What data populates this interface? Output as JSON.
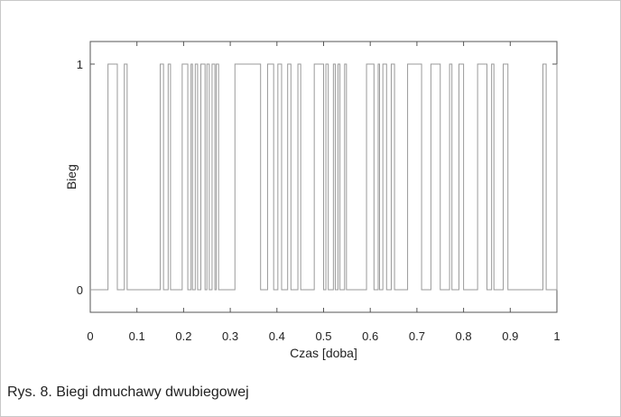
{
  "chart_data": {
    "type": "line",
    "step": true,
    "xlabel": "Czas [doba]",
    "ylabel": "Bieg",
    "xlim": [
      0,
      1
    ],
    "ylim": [
      -0.1,
      1.1
    ],
    "x_ticks": [
      "0",
      "0.1",
      "0.2",
      "0.3",
      "0.4",
      "0.5",
      "0.6",
      "0.7",
      "0.8",
      "0.9",
      "1"
    ],
    "y_ticks": [
      "0",
      "1"
    ],
    "grid": false,
    "line_color": "#9a9a9a",
    "series": [
      {
        "x": [
          0,
          0.038,
          0.058,
          0.073,
          0.079,
          0.15,
          0.157,
          0.167,
          0.172,
          0.197,
          0.209,
          0.216,
          0.219,
          0.225,
          0.23,
          0.237,
          0.246,
          0.25,
          0.255,
          0.261,
          0.267,
          0.27,
          0.275,
          0.31,
          0.365,
          0.38,
          0.393,
          0.402,
          0.41,
          0.423,
          0.43,
          0.445,
          0.451,
          0.48,
          0.5,
          0.505,
          0.51,
          0.521,
          0.525,
          0.531,
          0.535,
          0.545,
          0.549,
          0.592,
          0.608,
          0.617,
          0.62,
          0.627,
          0.635,
          0.645,
          0.652,
          0.68,
          0.71,
          0.73,
          0.75,
          0.77,
          0.775,
          0.79,
          0.8,
          0.83,
          0.85,
          0.86,
          0.865,
          0.885,
          0.895,
          0.97,
          0.977,
          1
        ]
      }
    ],
    "y_values_step": [
      0,
      1,
      0,
      1,
      0,
      1,
      0,
      1,
      0,
      1,
      0,
      1,
      0,
      1,
      0,
      1,
      0,
      1,
      0,
      1,
      0,
      1,
      0,
      1,
      0,
      1,
      0,
      1,
      0,
      1,
      0,
      1,
      0,
      1,
      0,
      1,
      0,
      1,
      0,
      1,
      0,
      1,
      0,
      1,
      0,
      1,
      0,
      1,
      0,
      1,
      0,
      1,
      0,
      1,
      0,
      1,
      0,
      1,
      0,
      1,
      0,
      1,
      0,
      1,
      0,
      1,
      0,
      1
    ]
  },
  "caption": "Rys. 8. Biegi dmuchawy dwubiegowej"
}
